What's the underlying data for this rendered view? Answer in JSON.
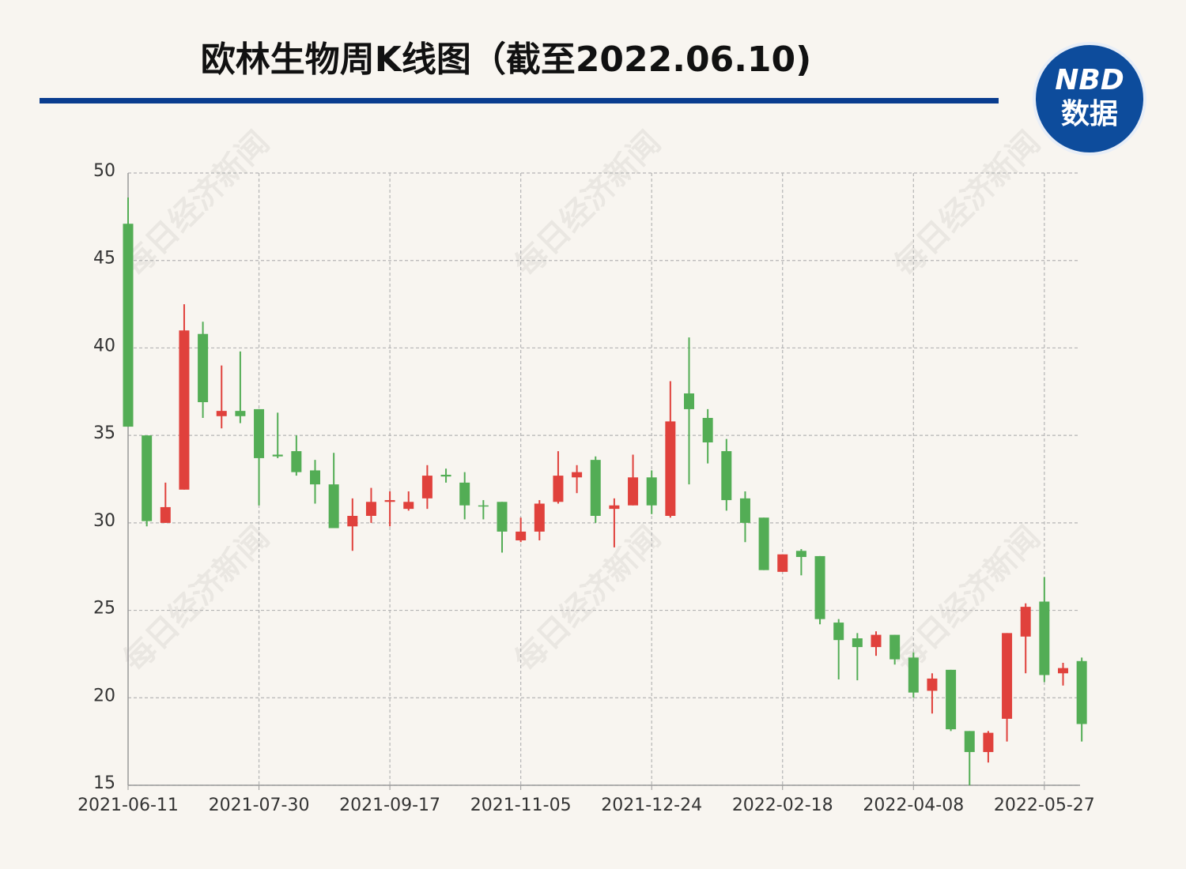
{
  "chart_data": {
    "type": "candlestick",
    "title": "欧林生物周K线图（截至2022.06.10)",
    "logo": {
      "top": "NBD",
      "bottom": "数据"
    },
    "watermark": "每日经济新闻",
    "categories": [
      "2021-06-11",
      null,
      null,
      null,
      null,
      null,
      null,
      "2021-07-30",
      null,
      null,
      null,
      null,
      null,
      null,
      "2021-09-17",
      null,
      null,
      null,
      null,
      null,
      null,
      "2021-11-05",
      null,
      null,
      null,
      null,
      null,
      null,
      "2021-12-24",
      null,
      null,
      null,
      null,
      null,
      null,
      "2022-02-18",
      null,
      null,
      null,
      null,
      null,
      null,
      "2022-04-08",
      null,
      null,
      null,
      null,
      null,
      null,
      "2022-05-27",
      null,
      null
    ],
    "open": [
      47.1,
      35.0,
      30.0,
      31.9,
      40.8,
      36.1,
      36.4,
      36.5,
      33.9,
      34.1,
      33.0,
      32.2,
      29.8,
      30.4,
      31.2,
      30.8,
      31.4,
      32.75,
      32.3,
      31.0,
      31.2,
      29.0,
      29.5,
      31.2,
      32.6,
      33.6,
      30.8,
      31.0,
      32.6,
      30.4,
      37.4,
      36.0,
      34.1,
      31.4,
      30.3,
      27.2,
      28.4,
      28.1,
      24.3,
      23.4,
      22.9,
      23.6,
      22.3,
      20.4,
      21.6,
      18.1,
      16.9,
      18.8,
      23.5,
      25.5,
      21.4,
      22.1
    ],
    "high": [
      48.6,
      35.0,
      32.3,
      42.5,
      41.5,
      39.0,
      39.8,
      36.5,
      36.3,
      35.0,
      33.6,
      34.0,
      31.4,
      32.0,
      31.8,
      31.8,
      33.3,
      33.1,
      32.9,
      31.3,
      31.2,
      30.3,
      31.3,
      34.1,
      33.3,
      33.8,
      31.4,
      33.9,
      33.0,
      38.1,
      40.6,
      36.5,
      34.8,
      31.8,
      30.3,
      28.2,
      28.5,
      28.1,
      24.5,
      23.7,
      23.8,
      23.6,
      22.6,
      21.4,
      21.6,
      18.1,
      18.1,
      23.7,
      25.4,
      26.9,
      22.0,
      22.3
    ],
    "low": [
      35.5,
      29.8,
      30.0,
      31.9,
      36.0,
      35.4,
      35.7,
      31.0,
      33.7,
      32.7,
      31.1,
      29.7,
      28.4,
      30.0,
      29.8,
      30.7,
      30.8,
      32.3,
      30.2,
      30.2,
      28.3,
      28.9,
      29.0,
      31.1,
      31.7,
      30.0,
      28.6,
      31.0,
      30.5,
      30.3,
      32.2,
      33.4,
      30.7,
      28.9,
      27.3,
      27.2,
      27.0,
      24.2,
      21.05,
      21.0,
      22.4,
      21.9,
      20.0,
      19.1,
      18.1,
      15.0,
      16.3,
      17.5,
      21.4,
      20.9,
      20.7,
      17.5
    ],
    "close": [
      35.5,
      30.1,
      30.9,
      41.0,
      36.9,
      36.4,
      36.1,
      33.7,
      33.8,
      32.9,
      32.2,
      29.7,
      30.4,
      31.2,
      31.3,
      31.2,
      32.7,
      32.65,
      31.0,
      30.95,
      29.5,
      29.5,
      31.1,
      32.7,
      32.9,
      30.4,
      31.0,
      32.6,
      31.0,
      35.8,
      36.5,
      34.6,
      31.3,
      30.0,
      27.3,
      28.2,
      28.05,
      24.5,
      23.3,
      22.9,
      23.6,
      22.2,
      20.3,
      21.1,
      18.2,
      16.9,
      18.0,
      23.7,
      25.2,
      21.3,
      21.7,
      18.5
    ],
    "up_color": "#e0413c",
    "down_color": "#53ad55",
    "ylim": [
      15,
      50
    ],
    "yticks": [
      15,
      20,
      25,
      30,
      35,
      40,
      45,
      50
    ],
    "grid": true
  }
}
